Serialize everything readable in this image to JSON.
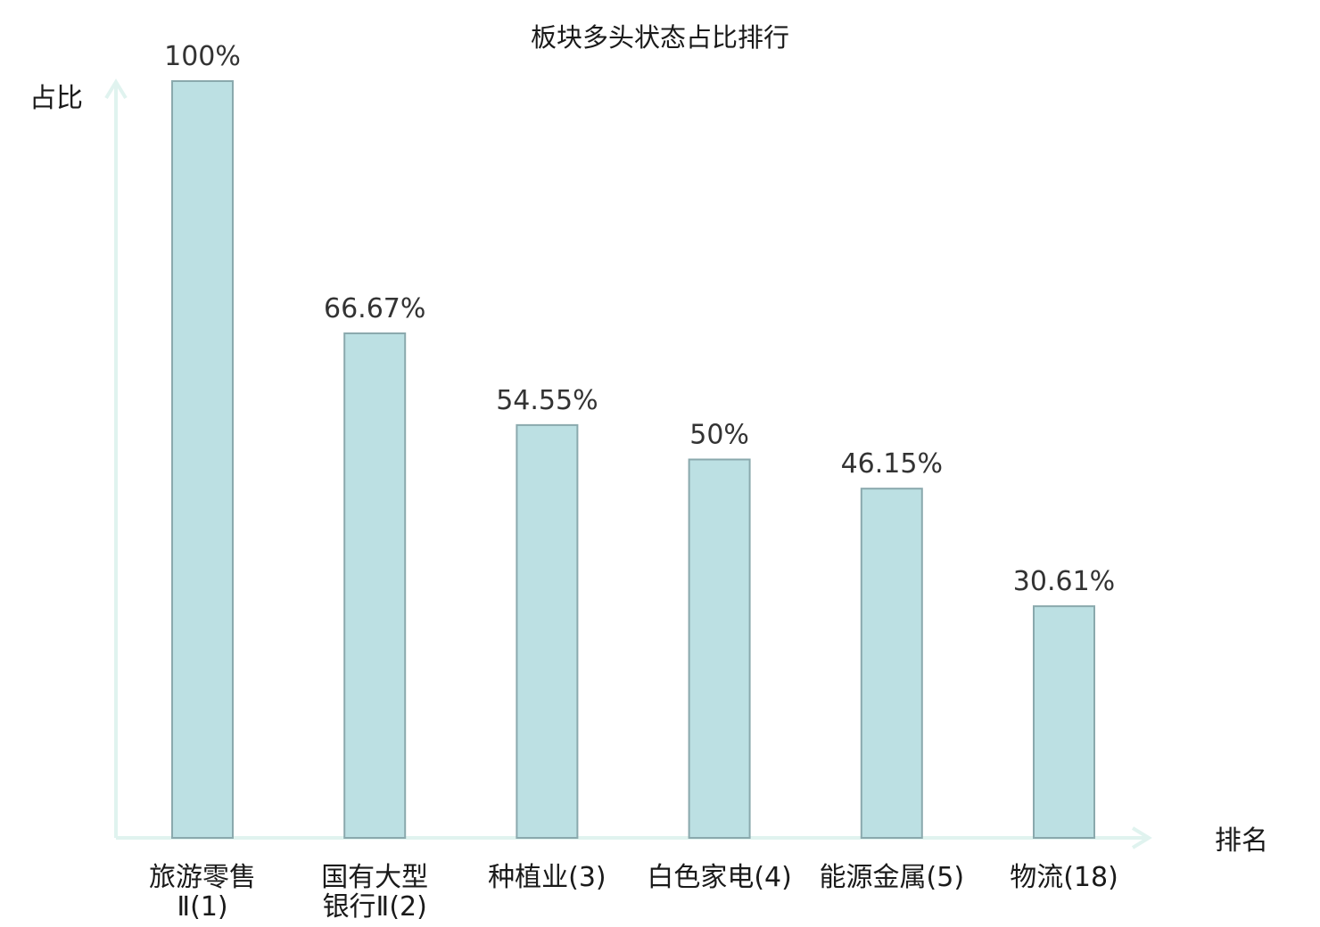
{
  "chart_data": {
    "type": "bar",
    "title": "板块多头状态占比排行",
    "ylabel": "占比",
    "xlabel": "排名",
    "ylim": [
      0,
      100
    ],
    "grid": false,
    "categories": [
      {
        "name": "旅游零售Ⅱ",
        "rank": "(1)",
        "lines": [
          "旅游零售",
          "Ⅱ(1)"
        ],
        "highlight": false
      },
      {
        "name": "国有大型银行Ⅱ",
        "rank": "(2)",
        "lines": [
          "国有大型",
          "银行Ⅱ(2)"
        ],
        "highlight": false
      },
      {
        "name": "种植业",
        "rank": "(3)",
        "lines": [
          "种植业(3)"
        ],
        "highlight": false
      },
      {
        "name": "白色家电",
        "rank": "(4)",
        "lines": [
          "白色家电(4)"
        ],
        "highlight": false
      },
      {
        "name": "能源金属",
        "rank": "(5)",
        "lines": [
          "能源金属(5)"
        ],
        "highlight": false
      },
      {
        "name": "物流",
        "rank": "(18)",
        "lines": [
          "物流(18)"
        ],
        "highlight": true
      }
    ],
    "values": [
      100,
      66.67,
      54.55,
      50,
      46.15,
      30.61
    ],
    "value_labels": [
      "100%",
      "66.67%",
      "54.55%",
      "50%",
      "46.15%",
      "30.61%"
    ],
    "colors": {
      "bar_fill": "#bce0e3",
      "bar_stroke": "#8aa9ad",
      "axis": "#e0f3ef",
      "highlight_label": "#e0201d",
      "text": "#1a1a1a"
    }
  }
}
